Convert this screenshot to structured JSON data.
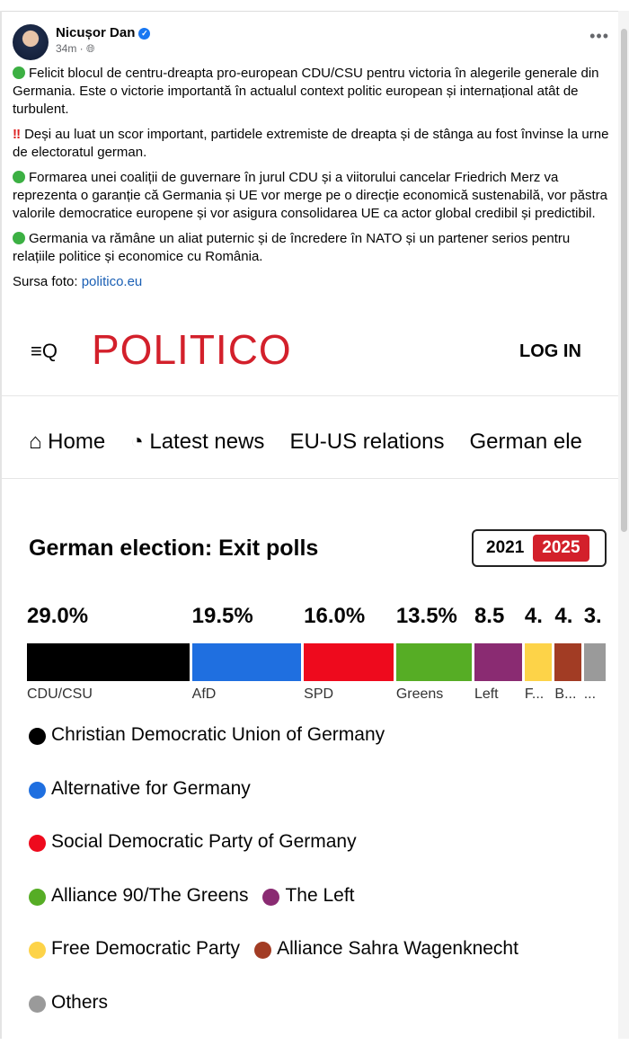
{
  "post": {
    "author": "Nicușor Dan",
    "time": "34m ·",
    "more": "•••",
    "paragraphs": [
      "Felicit blocul de centru-dreapta pro-european CDU/CSU pentru victoria în alegerile generale din Germania. Este o victorie importantă în actualul context politic european și internațional atât de turbulent.",
      "Deși au luat un scor important, partidele extremiste de dreapta și de stânga au fost învinse la urne de electoratul german.",
      "Formarea unei coaliții de guvernare în jurul CDU și a viitorului cancelar Friedrich Merz va reprezenta o garanție că Germania și UE vor merge pe o direcție economică sustenabilă, vor păstra valorile democratice europene și vor asigura consolidarea UE ca actor global credibil și predictibil.",
      "Germania va rămâne un aliat puternic și de încredere în NATO și un partener serios pentru relațiile politice și economice cu România."
    ],
    "excl": "‼",
    "source_label": "Sursa foto: ",
    "source_link": "politico.eu"
  },
  "politico": {
    "logo": "POLITICO",
    "login": "LOG IN",
    "menu_icon": "≡Q",
    "nav": [
      "⌂ Home",
      "◔ Latest news",
      "EU-US relations",
      "German ele"
    ],
    "title": "German election: Exit polls",
    "years": [
      "2021",
      "2025"
    ]
  },
  "chart_data": {
    "type": "bar",
    "title": "German election: Exit polls",
    "parties": [
      {
        "short": "CDU/CSU",
        "label": "29.0%",
        "value": 29.0,
        "color": "#000000",
        "name": "Christian Democratic Union of Germany"
      },
      {
        "short": "AfD",
        "label": "19.5%",
        "value": 19.5,
        "color": "#1f6fe0",
        "name": "Alternative for Germany"
      },
      {
        "short": "SPD",
        "label": "16.0%",
        "value": 16.0,
        "color": "#ee0a1d",
        "name": "Social Democratic Party of Germany"
      },
      {
        "short": "Greens",
        "label": "13.5%",
        "value": 13.5,
        "color": "#56ad25",
        "name": "Alliance 90/The Greens"
      },
      {
        "short": "Left",
        "label": "8.5",
        "value": 8.5,
        "color": "#8a2b72",
        "name": "The Left"
      },
      {
        "short": "F...",
        "label": "4.",
        "value": 4.9,
        "color": "#fdd348",
        "name": "Free Democratic Party"
      },
      {
        "short": "B...",
        "label": "4.",
        "value": 4.7,
        "color": "#a23c24",
        "name": "Alliance Sahra Wagenknecht"
      },
      {
        "short": "...",
        "label": "3.",
        "value": 3.9,
        "color": "#9a9a9a",
        "name": "Others"
      }
    ]
  }
}
